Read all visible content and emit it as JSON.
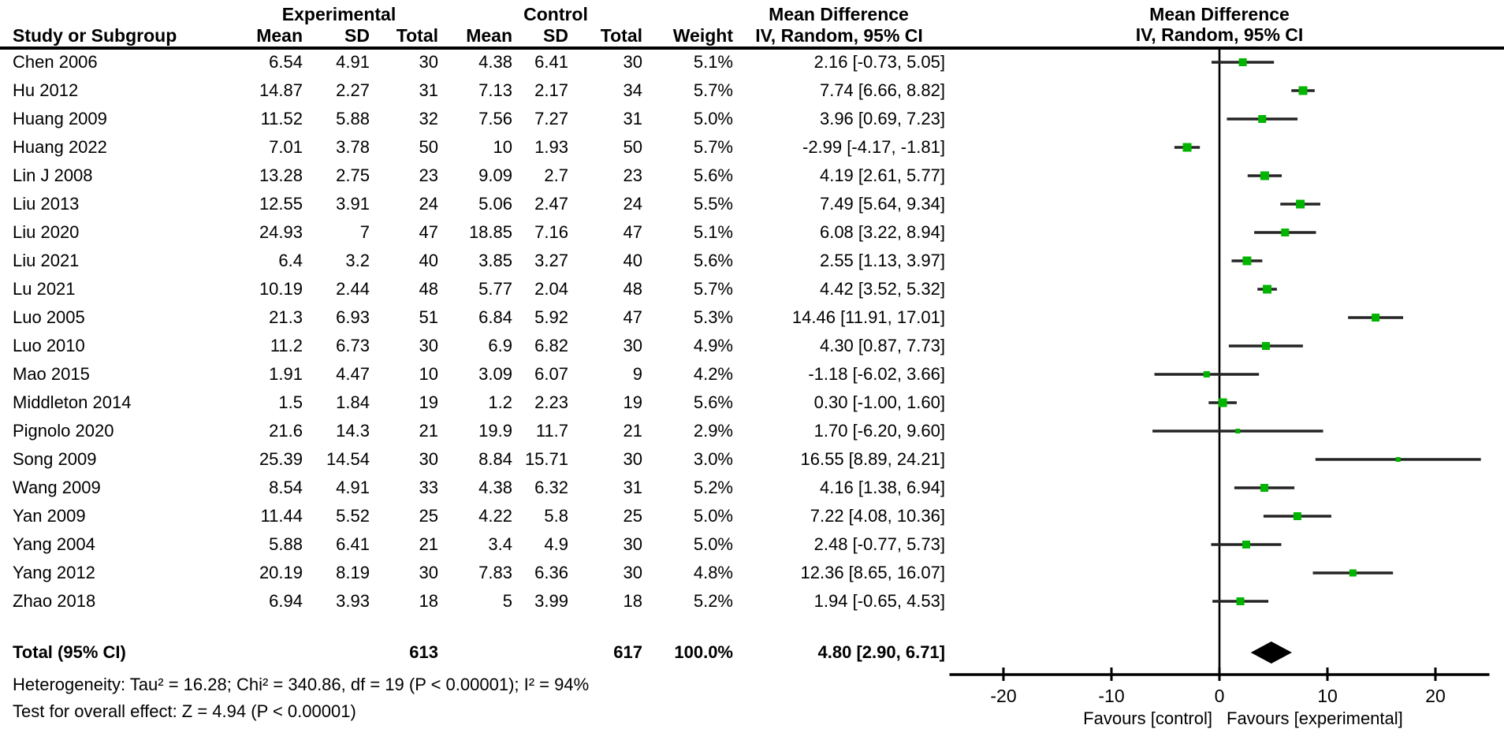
{
  "header": {
    "group_experimental": "Experimental",
    "group_control": "Control",
    "md_col_title_line1": "Mean Difference",
    "md_col_title_line2": "IV, Random, 95% CI",
    "plot_title_line1": "Mean Difference",
    "plot_title_line2": "IV, Random, 95% CI",
    "columns": [
      "Study or Subgroup",
      "Mean",
      "SD",
      "Total",
      "Mean",
      "SD",
      "Total",
      "Weight"
    ]
  },
  "chart_data": {
    "type": "forest",
    "effect_measure": "Mean Difference",
    "model": "IV, Random, 95% CI",
    "xlim": [
      -25,
      25
    ],
    "x_ticks": [
      -20,
      -10,
      0,
      10,
      20
    ],
    "marker_color": "#00b400",
    "ci_color": "#242424",
    "studies": [
      {
        "name": "Chen 2006",
        "exp_mean": 6.54,
        "exp_sd": 4.91,
        "exp_total": 30,
        "ctl_mean": 4.38,
        "ctl_sd": 6.41,
        "ctl_total": 30,
        "weight": "5.1%",
        "weight_pct": 5.1,
        "md": 2.16,
        "ci_low": -0.73,
        "ci_high": 5.05,
        "md_label": "2.16 [-0.73, 5.05]"
      },
      {
        "name": "Hu 2012",
        "exp_mean": 14.87,
        "exp_sd": 2.27,
        "exp_total": 31,
        "ctl_mean": 7.13,
        "ctl_sd": 2.17,
        "ctl_total": 34,
        "weight": "5.7%",
        "weight_pct": 5.7,
        "md": 7.74,
        "ci_low": 6.66,
        "ci_high": 8.82,
        "md_label": "7.74 [6.66, 8.82]"
      },
      {
        "name": "Huang 2009",
        "exp_mean": 11.52,
        "exp_sd": 5.88,
        "exp_total": 32,
        "ctl_mean": 7.56,
        "ctl_sd": 7.27,
        "ctl_total": 31,
        "weight": "5.0%",
        "weight_pct": 5.0,
        "md": 3.96,
        "ci_low": 0.69,
        "ci_high": 7.23,
        "md_label": "3.96 [0.69, 7.23]"
      },
      {
        "name": "Huang 2022",
        "exp_mean": 7.01,
        "exp_sd": 3.78,
        "exp_total": 50,
        "ctl_mean": 10,
        "ctl_sd": 1.93,
        "ctl_total": 50,
        "weight": "5.7%",
        "weight_pct": 5.7,
        "md": -2.99,
        "ci_low": -4.17,
        "ci_high": -1.81,
        "md_label": "-2.99 [-4.17, -1.81]"
      },
      {
        "name": "Lin J 2008",
        "exp_mean": 13.28,
        "exp_sd": 2.75,
        "exp_total": 23,
        "ctl_mean": 9.09,
        "ctl_sd": 2.7,
        "ctl_total": 23,
        "weight": "5.6%",
        "weight_pct": 5.6,
        "md": 4.19,
        "ci_low": 2.61,
        "ci_high": 5.77,
        "md_label": "4.19 [2.61, 5.77]"
      },
      {
        "name": "Liu 2013",
        "exp_mean": 12.55,
        "exp_sd": 3.91,
        "exp_total": 24,
        "ctl_mean": 5.06,
        "ctl_sd": 2.47,
        "ctl_total": 24,
        "weight": "5.5%",
        "weight_pct": 5.5,
        "md": 7.49,
        "ci_low": 5.64,
        "ci_high": 9.34,
        "md_label": "7.49 [5.64, 9.34]"
      },
      {
        "name": "Liu 2020",
        "exp_mean": 24.93,
        "exp_sd": 7,
        "exp_total": 47,
        "ctl_mean": 18.85,
        "ctl_sd": 7.16,
        "ctl_total": 47,
        "weight": "5.1%",
        "weight_pct": 5.1,
        "md": 6.08,
        "ci_low": 3.22,
        "ci_high": 8.94,
        "md_label": "6.08 [3.22, 8.94]"
      },
      {
        "name": "Liu 2021",
        "exp_mean": 6.4,
        "exp_sd": 3.2,
        "exp_total": 40,
        "ctl_mean": 3.85,
        "ctl_sd": 3.27,
        "ctl_total": 40,
        "weight": "5.6%",
        "weight_pct": 5.6,
        "md": 2.55,
        "ci_low": 1.13,
        "ci_high": 3.97,
        "md_label": "2.55 [1.13, 3.97]"
      },
      {
        "name": "Lu 2021",
        "exp_mean": 10.19,
        "exp_sd": 2.44,
        "exp_total": 48,
        "ctl_mean": 5.77,
        "ctl_sd": 2.04,
        "ctl_total": 48,
        "weight": "5.7%",
        "weight_pct": 5.7,
        "md": 4.42,
        "ci_low": 3.52,
        "ci_high": 5.32,
        "md_label": "4.42 [3.52, 5.32]"
      },
      {
        "name": "Luo 2005",
        "exp_mean": 21.3,
        "exp_sd": 6.93,
        "exp_total": 51,
        "ctl_mean": 6.84,
        "ctl_sd": 5.92,
        "ctl_total": 47,
        "weight": "5.3%",
        "weight_pct": 5.3,
        "md": 14.46,
        "ci_low": 11.91,
        "ci_high": 17.01,
        "md_label": "14.46 [11.91, 17.01]"
      },
      {
        "name": "Luo 2010",
        "exp_mean": 11.2,
        "exp_sd": 6.73,
        "exp_total": 30,
        "ctl_mean": 6.9,
        "ctl_sd": 6.82,
        "ctl_total": 30,
        "weight": "4.9%",
        "weight_pct": 4.9,
        "md": 4.3,
        "ci_low": 0.87,
        "ci_high": 7.73,
        "md_label": "4.30 [0.87, 7.73]"
      },
      {
        "name": "Mao 2015",
        "exp_mean": 1.91,
        "exp_sd": 4.47,
        "exp_total": 10,
        "ctl_mean": 3.09,
        "ctl_sd": 6.07,
        "ctl_total": 9,
        "weight": "4.2%",
        "weight_pct": 4.2,
        "md": -1.18,
        "ci_low": -6.02,
        "ci_high": 3.66,
        "md_label": "-1.18 [-6.02, 3.66]"
      },
      {
        "name": "Middleton 2014",
        "exp_mean": 1.5,
        "exp_sd": 1.84,
        "exp_total": 19,
        "ctl_mean": 1.2,
        "ctl_sd": 2.23,
        "ctl_total": 19,
        "weight": "5.6%",
        "weight_pct": 5.6,
        "md": 0.3,
        "ci_low": -1.0,
        "ci_high": 1.6,
        "md_label": "0.30 [-1.00, 1.60]"
      },
      {
        "name": "Pignolo 2020",
        "exp_mean": 21.6,
        "exp_sd": 14.3,
        "exp_total": 21,
        "ctl_mean": 19.9,
        "ctl_sd": 11.7,
        "ctl_total": 21,
        "weight": "2.9%",
        "weight_pct": 2.9,
        "md": 1.7,
        "ci_low": -6.2,
        "ci_high": 9.6,
        "md_label": "1.70 [-6.20, 9.60]"
      },
      {
        "name": "Song 2009",
        "exp_mean": 25.39,
        "exp_sd": 14.54,
        "exp_total": 30,
        "ctl_mean": 8.84,
        "ctl_sd": 15.71,
        "ctl_total": 30,
        "weight": "3.0%",
        "weight_pct": 3.0,
        "md": 16.55,
        "ci_low": 8.89,
        "ci_high": 24.21,
        "md_label": "16.55 [8.89, 24.21]"
      },
      {
        "name": "Wang 2009",
        "exp_mean": 8.54,
        "exp_sd": 4.91,
        "exp_total": 33,
        "ctl_mean": 4.38,
        "ctl_sd": 6.32,
        "ctl_total": 31,
        "weight": "5.2%",
        "weight_pct": 5.2,
        "md": 4.16,
        "ci_low": 1.38,
        "ci_high": 6.94,
        "md_label": "4.16 [1.38, 6.94]"
      },
      {
        "name": "Yan 2009",
        "exp_mean": 11.44,
        "exp_sd": 5.52,
        "exp_total": 25,
        "ctl_mean": 4.22,
        "ctl_sd": 5.8,
        "ctl_total": 25,
        "weight": "5.0%",
        "weight_pct": 5.0,
        "md": 7.22,
        "ci_low": 4.08,
        "ci_high": 10.36,
        "md_label": "7.22 [4.08, 10.36]"
      },
      {
        "name": "Yang 2004",
        "exp_mean": 5.88,
        "exp_sd": 6.41,
        "exp_total": 21,
        "ctl_mean": 3.4,
        "ctl_sd": 4.9,
        "ctl_total": 30,
        "weight": "5.0%",
        "weight_pct": 5.0,
        "md": 2.48,
        "ci_low": -0.77,
        "ci_high": 5.73,
        "md_label": "2.48 [-0.77, 5.73]"
      },
      {
        "name": "Yang 2012",
        "exp_mean": 20.19,
        "exp_sd": 8.19,
        "exp_total": 30,
        "ctl_mean": 7.83,
        "ctl_sd": 6.36,
        "ctl_total": 30,
        "weight": "4.8%",
        "weight_pct": 4.8,
        "md": 12.36,
        "ci_low": 8.65,
        "ci_high": 16.07,
        "md_label": "12.36 [8.65, 16.07]"
      },
      {
        "name": "Zhao 2018",
        "exp_mean": 6.94,
        "exp_sd": 3.93,
        "exp_total": 18,
        "ctl_mean": 5,
        "ctl_sd": 3.99,
        "ctl_total": 18,
        "weight": "5.2%",
        "weight_pct": 5.2,
        "md": 1.94,
        "ci_low": -0.65,
        "ci_high": 4.53,
        "md_label": "1.94 [-0.65, 4.53]"
      }
    ],
    "total": {
      "label": "Total (95% CI)",
      "exp_total": 613,
      "ctl_total": 617,
      "weight": "100.0%",
      "md": 4.8,
      "ci_low": 2.9,
      "ci_high": 6.71,
      "md_label": "4.80 [2.90, 6.71]"
    },
    "heterogeneity": "Heterogeneity: Tau² = 16.28; Chi² = 340.86, df = 19 (P < 0.00001); I² = 94%",
    "overall_effect": "Test for overall effect: Z = 4.94 (P < 0.00001)",
    "favours_left": "Favours [control]",
    "favours_right": "Favours [experimental]"
  }
}
